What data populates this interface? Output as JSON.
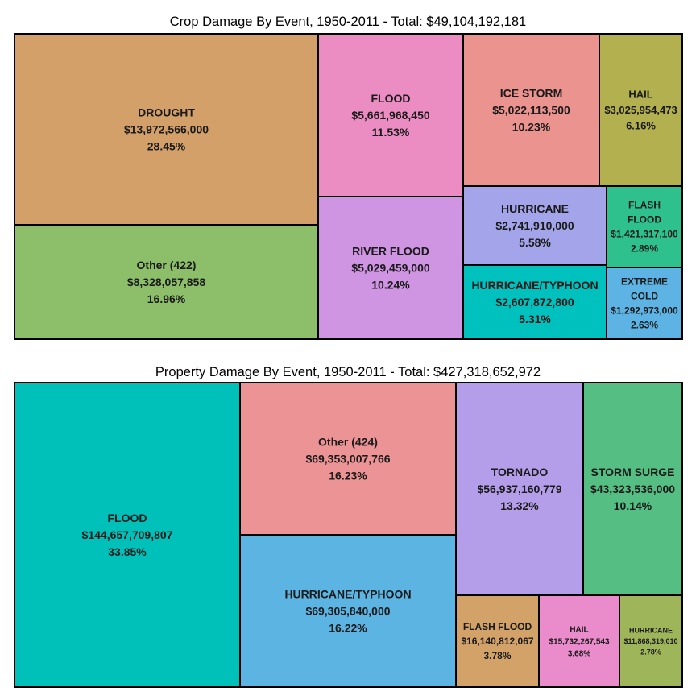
{
  "chart_data": [
    {
      "type": "treemap",
      "title": "Crop Damage By Event, 1950-2011 - Total: $49,104,192,181",
      "cells": [
        {
          "name": "DROUGHT",
          "value": "$13,972,566,000",
          "percent": "28.45%",
          "color": "#D4A06A"
        },
        {
          "name": "Other (422)",
          "value": "$8,328,057,858",
          "percent": "16.96%",
          "color": "#8DBE6A"
        },
        {
          "name": "FLOOD",
          "value": "$5,661,968,450",
          "percent": "11.53%",
          "color": "#EB8DC2"
        },
        {
          "name": "RIVER FLOOD",
          "value": "$5,029,459,000",
          "percent": "10.24%",
          "color": "#CF94E2"
        },
        {
          "name": "ICE STORM",
          "value": "$5,022,113,500",
          "percent": "10.23%",
          "color": "#EB938E"
        },
        {
          "name": "HAIL",
          "value": "$3,025,954,473",
          "percent": "6.16%",
          "color": "#B3B050"
        },
        {
          "name": "HURRICANE",
          "value": "$2,741,910,000",
          "percent": "5.58%",
          "color": "#A3A4E9"
        },
        {
          "name": "FLASH FLOOD",
          "value": "$1,421,317,100",
          "percent": "2.89%",
          "color": "#2EC18E"
        },
        {
          "name": "HURRICANE/TYPHOON",
          "value": "$2,607,872,800",
          "percent": "5.31%",
          "color": "#00C1BD"
        },
        {
          "name": "EXTREME COLD",
          "value": "$1,292,973,000",
          "percent": "2.63%",
          "color": "#5CB3E4"
        }
      ]
    },
    {
      "type": "treemap",
      "title": "Property Damage By Event, 1950-2011 - Total: $427,318,652,972",
      "cells": [
        {
          "name": "FLOOD",
          "value": "$144,657,709,807",
          "percent": "33.85%",
          "color": "#00C1B9"
        },
        {
          "name": "Other (424)",
          "value": "$69,353,007,766",
          "percent": "16.23%",
          "color": "#EB9395"
        },
        {
          "name": "HURRICANE/TYPHOON",
          "value": "$69,305,840,000",
          "percent": "16.22%",
          "color": "#5CB4E2"
        },
        {
          "name": "TORNADO",
          "value": "$56,937,160,779",
          "percent": "13.32%",
          "color": "#B59EE9"
        },
        {
          "name": "STORM SURGE",
          "value": "$43,323,536,000",
          "percent": "10.14%",
          "color": "#55BE82"
        },
        {
          "name": "FLASH FLOOD",
          "value": "$16,140,812,067",
          "percent": "3.78%",
          "color": "#D3A268"
        },
        {
          "name": "HAIL",
          "value": "$15,732,267,543",
          "percent": "3.68%",
          "color": "#EA8CCB"
        },
        {
          "name": "HURRICANE",
          "value": "$11,868,319,010",
          "percent": "2.78%",
          "color": "#9FB55A"
        }
      ]
    }
  ]
}
